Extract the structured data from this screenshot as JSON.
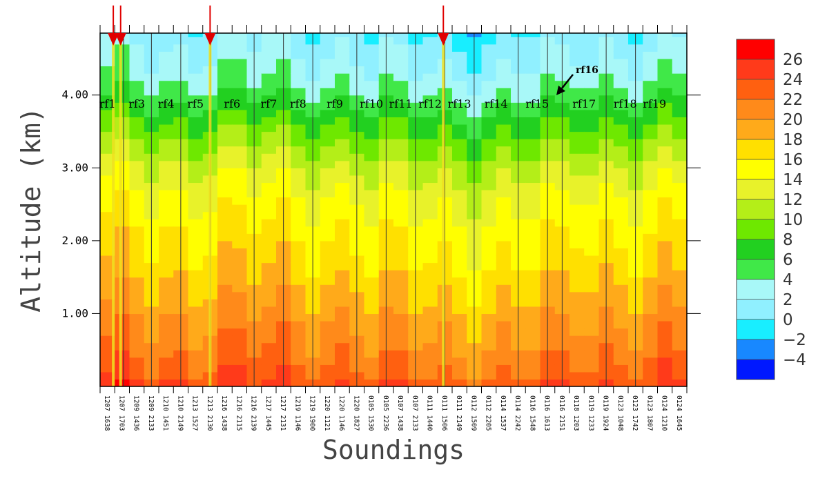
{
  "chart_data": {
    "type": "heatmap",
    "xlabel": "Soundings",
    "ylabel": "Altitude (km)",
    "ylim": [
      0,
      4.85
    ],
    "y_ticks": [
      "1.00",
      "2.00",
      "3.00",
      "4.00"
    ],
    "y_tick_values": [
      1,
      2,
      3,
      4
    ],
    "soundings": [
      "1207 1638",
      "1207 1703",
      "1209 1436",
      "1209 2133",
      "1210 1451",
      "1210 2149",
      "1213 1527",
      "1213 2130",
      "1216 1438",
      "1216 2115",
      "1216 2139",
      "1217 1445",
      "1217 2131",
      "1219 1146",
      "1219 1900",
      "1220 1121",
      "1220 1146",
      "1220 1827",
      "0105 1530",
      "0105 2236",
      "0107 1438",
      "0107 2133",
      "0111 1440",
      "0111 1506",
      "0111 2149",
      "0112 1509",
      "0112 2205",
      "0114 1537",
      "0114 2242",
      "0116 1548",
      "0116 1613",
      "0116 2151",
      "0118 1203",
      "0119 1233",
      "0119 1924",
      "0123 1048",
      "0123 1742",
      "0123 1807",
      "0124 1210",
      "0124 1645"
    ],
    "flights": [
      {
        "label": "rf1",
        "sounding": 0.5
      },
      {
        "label": "rf3",
        "sounding": 2.5
      },
      {
        "label": "rf4",
        "sounding": 4.5
      },
      {
        "label": "rf5",
        "sounding": 6.5
      },
      {
        "label": "rf6",
        "sounding": 9.0
      },
      {
        "label": "rf7",
        "sounding": 11.5
      },
      {
        "label": "rf8",
        "sounding": 13.5
      },
      {
        "label": "rf9",
        "sounding": 16.0
      },
      {
        "label": "rf10",
        "sounding": 18.5
      },
      {
        "label": "rf11",
        "sounding": 20.5
      },
      {
        "label": "rf12",
        "sounding": 22.5
      },
      {
        "label": "rf13",
        "sounding": 24.5
      },
      {
        "label": "rf14",
        "sounding": 27.0
      },
      {
        "label": "rf15",
        "sounding": 29.8
      },
      {
        "label": "rf17",
        "sounding": 33.0
      },
      {
        "label": "rf18",
        "sounding": 35.8
      },
      {
        "label": "rf19",
        "sounding": 37.8
      }
    ],
    "flight_boundaries": [
      1.6,
      3.5,
      5.5,
      7.5,
      10.5,
      12.5,
      14.5,
      17.5,
      19.5,
      21.5,
      23.5,
      25.5,
      28.5,
      30.5,
      31.5,
      34.5,
      36.5
    ],
    "annotation": {
      "label": "rf16",
      "sounding": 31.2
    },
    "highlighted_soundings": [
      0.9,
      1.4,
      7.5,
      23.4
    ],
    "profile_levels": [
      {
        "altitude": 0.0,
        "temperature": 24.5
      },
      {
        "altitude": 0.2,
        "temperature": 23
      },
      {
        "altitude": 0.45,
        "temperature": 22
      },
      {
        "altitude": 0.7,
        "temperature": 21
      },
      {
        "altitude": 1.0,
        "temperature": 20
      },
      {
        "altitude": 1.4,
        "temperature": 18.5
      },
      {
        "altitude": 1.8,
        "temperature": 17
      },
      {
        "altitude": 2.2,
        "temperature": 16
      },
      {
        "altitude": 2.6,
        "temperature": 14.5
      },
      {
        "altitude": 3.0,
        "temperature": 12.5
      },
      {
        "altitude": 3.3,
        "temperature": 10.5
      },
      {
        "altitude": 3.6,
        "temperature": 8.5
      },
      {
        "altitude": 3.9,
        "temperature": 6
      },
      {
        "altitude": 4.2,
        "temperature": 4
      },
      {
        "altitude": 4.5,
        "temperature": 2.5
      },
      {
        "altitude": 4.85,
        "temperature": 1.5
      }
    ],
    "colorbar": {
      "labels": [
        "26",
        "24",
        "22",
        "20",
        "18",
        "16",
        "14",
        "12",
        "10",
        "8",
        "6",
        "4",
        "2",
        "0",
        "−2",
        "−4"
      ],
      "colors": [
        "#ff0000",
        "#ff3a1a",
        "#ff6010",
        "#ff8a1a",
        "#ffaa1a",
        "#ffe000",
        "#ffff00",
        "#e8f22a",
        "#b4ee18",
        "#6ee800",
        "#22d020",
        "#40e848",
        "#a8f8f8",
        "#90f0ff",
        "#18eeff",
        "#1888ff",
        "#0018ff"
      ]
    }
  }
}
